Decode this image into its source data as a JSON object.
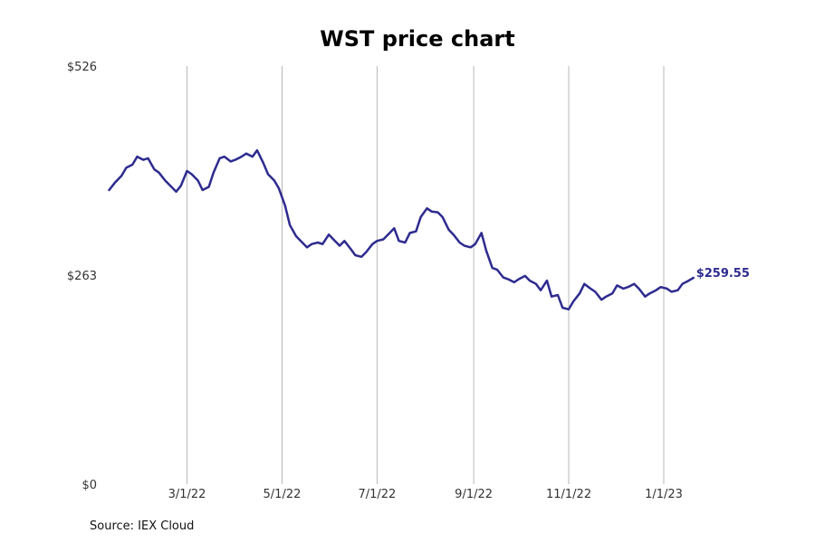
{
  "chart_data": {
    "type": "line",
    "title": "WST price chart",
    "xlabel": "",
    "ylabel": "",
    "ylim": [
      0,
      526
    ],
    "xlim": [
      "2022-01-01",
      "2023-03-10"
    ],
    "grid": "vertical",
    "y_ticks": [
      {
        "value": 0,
        "label": "$0"
      },
      {
        "value": 263,
        "label": "$263"
      },
      {
        "value": 526,
        "label": "$526"
      }
    ],
    "x_ticks": [
      {
        "date": "2022-03-01",
        "label": "3/1/22"
      },
      {
        "date": "2022-05-01",
        "label": "5/1/22"
      },
      {
        "date": "2022-07-01",
        "label": "7/1/22"
      },
      {
        "date": "2022-09-01",
        "label": "9/1/22"
      },
      {
        "date": "2022-11-01",
        "label": "11/1/22"
      },
      {
        "date": "2023-01-01",
        "label": "1/1/23"
      }
    ],
    "last_value_label": "$259.55",
    "color": "#2e2b8f",
    "series": [
      {
        "x": [
          "2022-01-10",
          "2022-01-14",
          "2022-01-18",
          "2022-01-21",
          "2022-01-25",
          "2022-01-28",
          "2022-02-01",
          "2022-02-04",
          "2022-02-08",
          "2022-02-11",
          "2022-02-15",
          "2022-02-18",
          "2022-02-22",
          "2022-02-25",
          "2022-03-01",
          "2022-03-04",
          "2022-03-08",
          "2022-03-11",
          "2022-03-15",
          "2022-03-18",
          "2022-03-22",
          "2022-03-25",
          "2022-03-29",
          "2022-04-01",
          "2022-04-05",
          "2022-04-08",
          "2022-04-12",
          "2022-04-15",
          "2022-04-19",
          "2022-04-22",
          "2022-04-26",
          "2022-04-29",
          "2022-05-03",
          "2022-05-06",
          "2022-05-10",
          "2022-05-13",
          "2022-05-17",
          "2022-05-20",
          "2022-05-24",
          "2022-05-27",
          "2022-05-31",
          "2022-06-03",
          "2022-06-07",
          "2022-06-10",
          "2022-06-14",
          "2022-06-17",
          "2022-06-21",
          "2022-06-24",
          "2022-06-28",
          "2022-07-01",
          "2022-07-05",
          "2022-07-08",
          "2022-07-12",
          "2022-07-15",
          "2022-07-19",
          "2022-07-22",
          "2022-07-26",
          "2022-07-29",
          "2022-08-02",
          "2022-08-05",
          "2022-08-09",
          "2022-08-12",
          "2022-08-16",
          "2022-08-19",
          "2022-08-23",
          "2022-08-26",
          "2022-08-30",
          "2022-09-02",
          "2022-09-06",
          "2022-09-09",
          "2022-09-13",
          "2022-09-16",
          "2022-09-20",
          "2022-09-23",
          "2022-09-27",
          "2022-09-30",
          "2022-10-04",
          "2022-10-07",
          "2022-10-11",
          "2022-10-14",
          "2022-10-18",
          "2022-10-21",
          "2022-10-25",
          "2022-10-28",
          "2022-11-01",
          "2022-11-04",
          "2022-11-08",
          "2022-11-11",
          "2022-11-15",
          "2022-11-18",
          "2022-11-22",
          "2022-11-25",
          "2022-11-29",
          "2022-12-02",
          "2022-12-06",
          "2022-12-09",
          "2022-12-13",
          "2022-12-16",
          "2022-12-20",
          "2022-12-23",
          "2022-12-27",
          "2022-12-30",
          "2023-01-03",
          "2023-01-06",
          "2023-01-10",
          "2023-01-13",
          "2023-01-17",
          "2023-01-20"
        ],
        "values": [
          370,
          380,
          388,
          398,
          402,
          412,
          408,
          410,
          396,
          392,
          382,
          376,
          368,
          375,
          394,
          390,
          382,
          370,
          374,
          392,
          410,
          412,
          406,
          408,
          412,
          416,
          412,
          420,
          404,
          390,
          382,
          372,
          350,
          326,
          312,
          306,
          298,
          302,
          304,
          302,
          314,
          308,
          300,
          306,
          296,
          288,
          286,
          292,
          302,
          306,
          308,
          314,
          322,
          306,
          304,
          316,
          318,
          336,
          347,
          343,
          342,
          336,
          320,
          314,
          304,
          300,
          298,
          302,
          316,
          294,
          272,
          270,
          260,
          258,
          254,
          258,
          262,
          256,
          252,
          244,
          256,
          236,
          238,
          222,
          220,
          230,
          240,
          252,
          246,
          242,
          232,
          236,
          240,
          250,
          246,
          248,
          252,
          246,
          236,
          240,
          244,
          248,
          246,
          242,
          244,
          252,
          256,
          259.55
        ]
      }
    ]
  },
  "source": "Source: IEX Cloud"
}
